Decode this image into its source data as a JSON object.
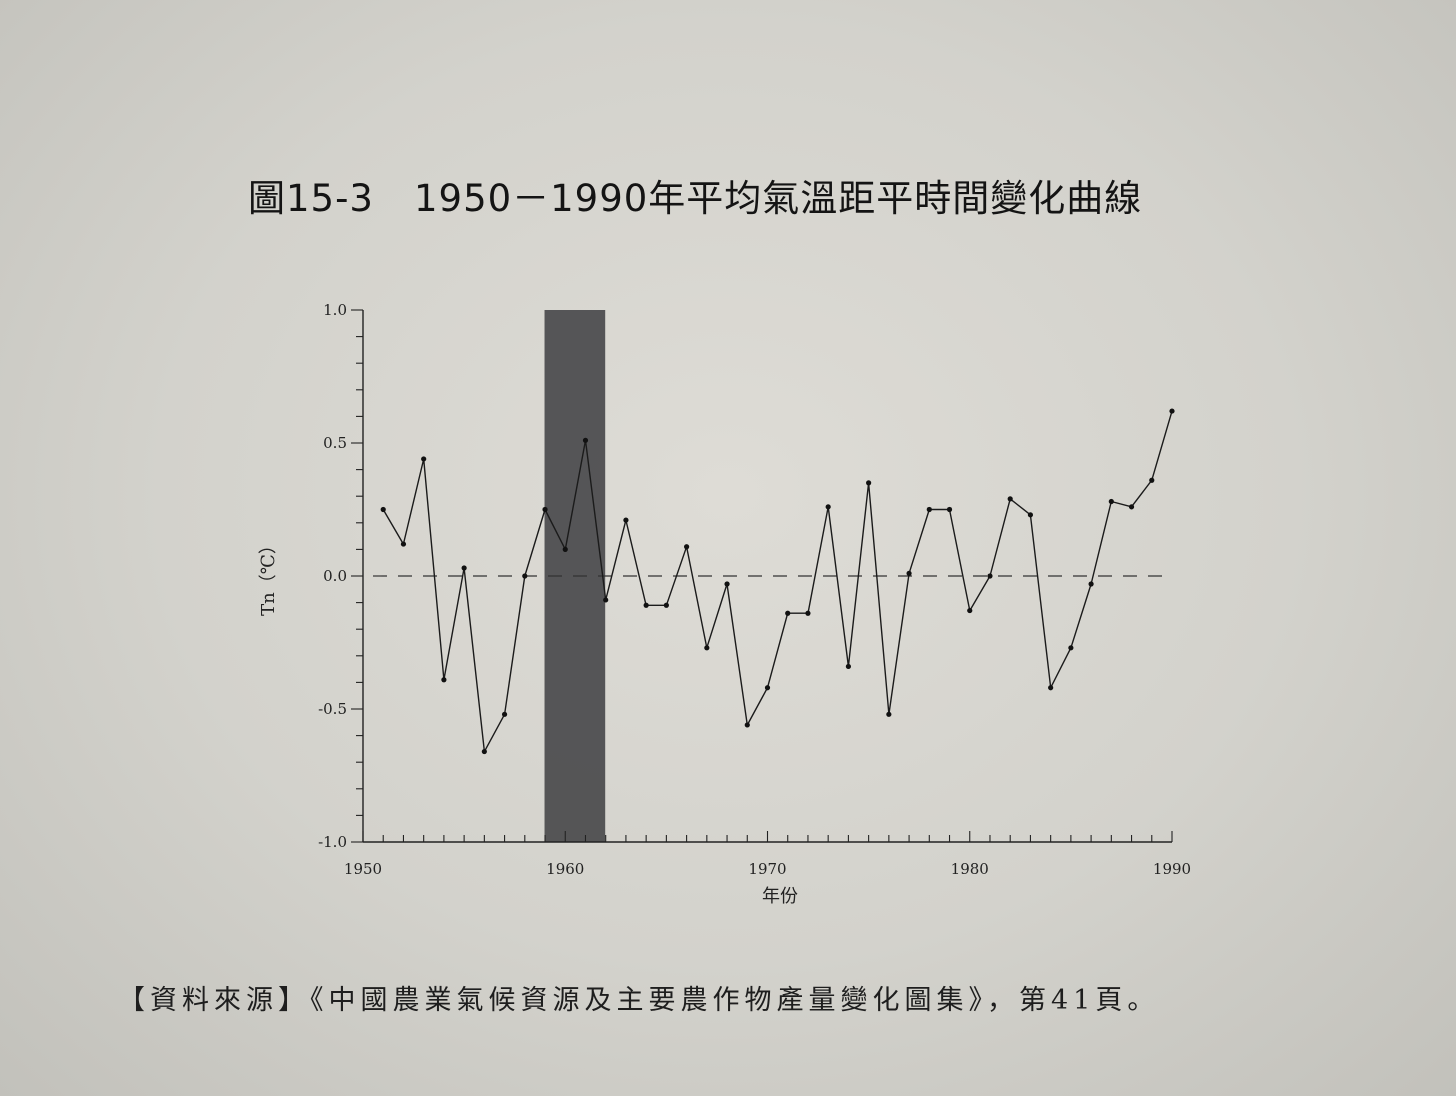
{
  "figure": {
    "number": "圖15-3",
    "title": "1950－1990年平均氣溫距平時間變化曲線"
  },
  "chart_data": {
    "type": "line",
    "xlabel": "年份",
    "ylabel": "Tn（℃）",
    "xlim": [
      1950,
      1990
    ],
    "ylim": [
      -1.0,
      1.0
    ],
    "x_ticks": [
      "1950",
      "1960",
      "1970",
      "1980",
      "1990"
    ],
    "y_ticks": [
      "1.0",
      "0.5",
      "0.0",
      "-0.5",
      "-1.0"
    ],
    "baseline": 0.0,
    "highlight_band": [
      1959,
      1962
    ],
    "grid": false,
    "series": [
      {
        "x": [
          1951,
          1952,
          1953,
          1954,
          1955,
          1956,
          1957,
          1958,
          1959,
          1960,
          1961,
          1962,
          1963,
          1964,
          1965,
          1966,
          1967,
          1968,
          1969,
          1970,
          1971,
          1972,
          1973,
          1974,
          1975,
          1976,
          1977,
          1978,
          1979,
          1980,
          1981,
          1982,
          1983,
          1984,
          1985,
          1986,
          1987,
          1988,
          1989,
          1990
        ],
        "values": [
          0.25,
          0.12,
          0.44,
          -0.39,
          0.03,
          -0.66,
          -0.52,
          0.0,
          0.25,
          0.1,
          0.51,
          -0.09,
          0.21,
          -0.11,
          -0.11,
          0.11,
          -0.27,
          -0.03,
          -0.56,
          -0.42,
          -0.14,
          -0.14,
          0.26,
          -0.34,
          0.35,
          -0.52,
          0.01,
          0.25,
          0.25,
          -0.13,
          0.0,
          0.29,
          0.23,
          -0.42,
          -0.27,
          -0.03,
          0.28,
          0.26,
          0.36,
          0.62
        ]
      }
    ]
  },
  "source": "【資料來源】《中國農業氣候資源及主要農作物產量變化圖集》，第41頁。"
}
